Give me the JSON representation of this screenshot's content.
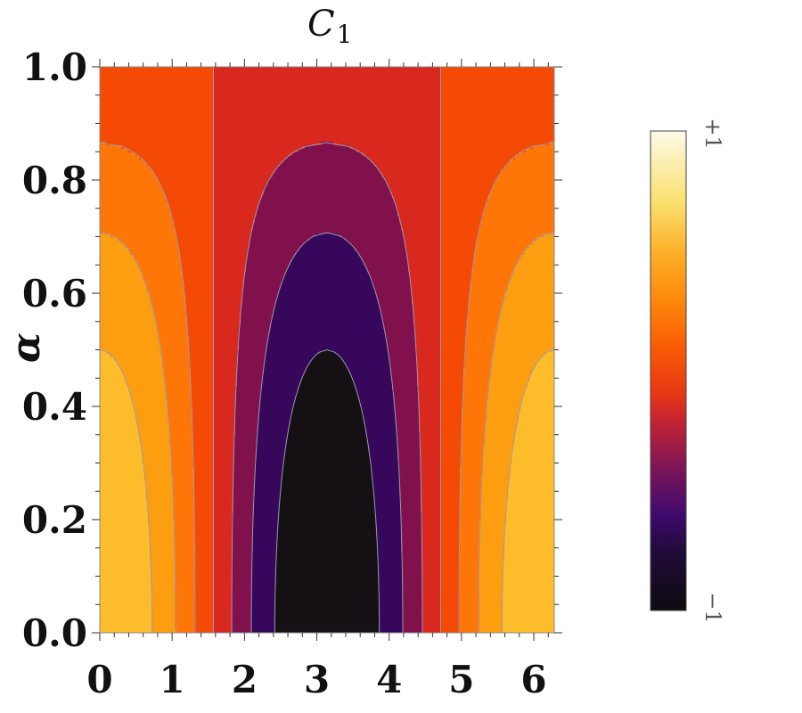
{
  "chart_data": {
    "type": "heatmap",
    "subtype": "contour",
    "title": "C",
    "title_subscript": "1",
    "xlabel": "",
    "ylabel": "α",
    "xlim": [
      0,
      6.283
    ],
    "ylim": [
      0,
      1
    ],
    "x_ticks": [
      "0",
      "1",
      "2",
      "3",
      "4",
      "5",
      "6"
    ],
    "y_ticks": [
      "0.0",
      "0.2",
      "0.4",
      "0.6",
      "0.8",
      "1.0"
    ],
    "grid": false,
    "contour_levels": [
      -1,
      -0.75,
      -0.5,
      -0.25,
      0,
      0.25,
      0.5,
      0.75,
      1
    ],
    "colors": [
      "#141014",
      "#36075a",
      "#81114c",
      "#d9281e",
      "#f54a06",
      "#fe7608",
      "#fd9d10",
      "#fdbd2b",
      "#fbe56a",
      "#fdf8d6"
    ],
    "colorbar": {
      "max_label": "+1",
      "min_label": "−1",
      "placement": "right"
    }
  }
}
